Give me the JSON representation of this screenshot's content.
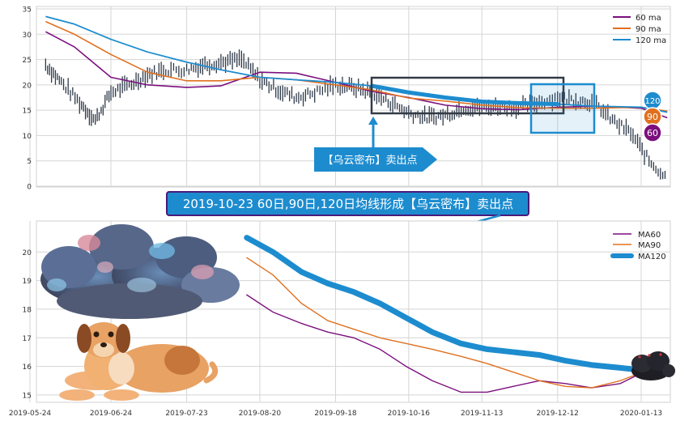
{
  "colors": {
    "ma60": "#7b0f7e",
    "ma90": "#e0701e",
    "ma120": "#1d8ccf",
    "price": "#2f3a4a",
    "grid": "#d5d5d5",
    "callout_fill": "#1d8ccf",
    "banner_fill": "#1d8ccf",
    "banner_border": "#4a1a7a",
    "dark_box": "#333b46"
  },
  "chart_data": [
    {
      "type": "line",
      "panel": "top",
      "x_dates": [
        "2019-05-24",
        "2019-06-24",
        "2019-07-23",
        "2019-08-20",
        "2019-09-18",
        "2019-10-16",
        "2019-11-13",
        "2019-12-12",
        "2020-01-13"
      ],
      "yticks": [
        "0",
        "5",
        "10",
        "15",
        "20",
        "25",
        "30",
        "35"
      ],
      "ylim": [
        0,
        35
      ],
      "grid": true,
      "legend_position": "top-right",
      "series": [
        {
          "name": "60 ma",
          "x": [
            "2019-05-30",
            "2019-06-10",
            "2019-06-24",
            "2019-07-08",
            "2019-07-23",
            "2019-08-05",
            "2019-08-20",
            "2019-09-03",
            "2019-09-18",
            "2019-10-02",
            "2019-10-16",
            "2019-10-30",
            "2019-11-13",
            "2019-11-27",
            "2019-12-12",
            "2019-12-26",
            "2020-01-13",
            "2020-01-23"
          ],
          "values": [
            30.5,
            27.5,
            21.5,
            20.0,
            19.5,
            19.8,
            22.5,
            22.3,
            20.5,
            18.7,
            17.5,
            16.0,
            15.3,
            15.1,
            15.6,
            15.8,
            15.4,
            13.5
          ]
        },
        {
          "name": "90 ma",
          "x": [
            "2019-05-30",
            "2019-06-10",
            "2019-06-24",
            "2019-07-08",
            "2019-07-23",
            "2019-08-05",
            "2019-08-20",
            "2019-09-03",
            "2019-09-18",
            "2019-10-02",
            "2019-10-16",
            "2019-10-30",
            "2019-11-13",
            "2019-11-27",
            "2019-12-12",
            "2019-12-26",
            "2020-01-13",
            "2020-01-23"
          ],
          "values": [
            32.5,
            30.0,
            26.0,
            22.5,
            20.8,
            20.8,
            21.5,
            21.0,
            20.0,
            19.0,
            17.4,
            16.8,
            16.0,
            15.5,
            15.4,
            15.4,
            15.6,
            14.8
          ]
        },
        {
          "name": "120 ma",
          "x": [
            "2019-05-30",
            "2019-06-10",
            "2019-06-24",
            "2019-07-08",
            "2019-07-23",
            "2019-08-05",
            "2019-08-20",
            "2019-09-03",
            "2019-09-18",
            "2019-10-02",
            "2019-10-16",
            "2019-10-30",
            "2019-11-13",
            "2019-11-27",
            "2019-12-12",
            "2019-12-26",
            "2020-01-13",
            "2020-01-23"
          ],
          "values": [
            33.5,
            32.0,
            29.0,
            26.5,
            24.5,
            23.0,
            21.5,
            21.0,
            20.5,
            19.8,
            18.5,
            17.5,
            16.7,
            16.4,
            16.2,
            15.8,
            15.6,
            14.6
          ]
        },
        {
          "name": "price",
          "x": [
            "2019-05-30",
            "2019-06-05",
            "2019-06-12",
            "2019-06-18",
            "2019-06-24",
            "2019-07-01",
            "2019-07-08",
            "2019-07-15",
            "2019-07-23",
            "2019-07-30",
            "2019-08-06",
            "2019-08-13",
            "2019-08-20",
            "2019-08-27",
            "2019-09-03",
            "2019-09-10",
            "2019-09-18",
            "2019-09-25",
            "2019-10-02",
            "2019-10-09",
            "2019-10-16",
            "2019-10-23",
            "2019-10-30",
            "2019-11-06",
            "2019-11-13",
            "2019-11-20",
            "2019-11-27",
            "2019-12-04",
            "2019-12-12",
            "2019-12-19",
            "2019-12-26",
            "2020-01-02",
            "2020-01-09",
            "2020-01-16",
            "2020-01-23"
          ],
          "values": [
            24.0,
            20.5,
            16.5,
            13.0,
            18.5,
            20.0,
            22.0,
            23.0,
            23.0,
            24.0,
            24.5,
            25.0,
            21.0,
            19.0,
            17.5,
            18.5,
            20.0,
            19.5,
            18.5,
            16.5,
            14.5,
            13.5,
            14.0,
            15.5,
            15.5,
            15.8,
            15.5,
            16.5,
            17.5,
            17.0,
            16.5,
            13.0,
            10.5,
            5.0,
            1.5
          ]
        }
      ],
      "annotations": {
        "end_badges": [
          "120",
          "90",
          "60"
        ],
        "callout_text": "【乌云密布】卖出点"
      }
    },
    {
      "type": "line",
      "panel": "bottom",
      "x_dates": [
        "2019-05-24",
        "2019-06-24",
        "2019-07-23",
        "2019-08-20",
        "2019-09-18",
        "2019-10-16",
        "2019-11-13",
        "2019-12-12",
        "2020-01-13"
      ],
      "yticks": [
        "15",
        "16",
        "17",
        "18",
        "19",
        "20"
      ],
      "ylim": [
        14.8,
        20.8
      ],
      "grid": true,
      "legend_position": "top-right",
      "series": [
        {
          "name": "MA60",
          "x": [
            "2019-08-15",
            "2019-08-25",
            "2019-09-05",
            "2019-09-15",
            "2019-09-25",
            "2019-10-05",
            "2019-10-15",
            "2019-10-25",
            "2019-11-05",
            "2019-11-15",
            "2019-11-25",
            "2019-12-05",
            "2019-12-15",
            "2019-12-25",
            "2020-01-05",
            "2020-01-15"
          ],
          "values": [
            18.5,
            17.9,
            17.5,
            17.2,
            17.0,
            16.6,
            16.0,
            15.5,
            15.1,
            15.1,
            15.3,
            15.5,
            15.4,
            15.25,
            15.4,
            15.85
          ]
        },
        {
          "name": "MA90",
          "x": [
            "2019-08-15",
            "2019-08-25",
            "2019-09-05",
            "2019-09-15",
            "2019-09-25",
            "2019-10-05",
            "2019-10-15",
            "2019-10-25",
            "2019-11-05",
            "2019-11-15",
            "2019-11-25",
            "2019-12-05",
            "2019-12-15",
            "2019-12-25",
            "2020-01-05",
            "2020-01-15"
          ],
          "values": [
            19.8,
            19.2,
            18.2,
            17.6,
            17.3,
            17.0,
            16.8,
            16.6,
            16.35,
            16.1,
            15.8,
            15.5,
            15.3,
            15.25,
            15.5,
            15.85
          ]
        },
        {
          "name": "MA120",
          "x": [
            "2019-08-15",
            "2019-08-25",
            "2019-09-05",
            "2019-09-15",
            "2019-09-25",
            "2019-10-05",
            "2019-10-15",
            "2019-10-25",
            "2019-11-05",
            "2019-11-15",
            "2019-11-25",
            "2019-12-05",
            "2019-12-15",
            "2019-12-25",
            "2020-01-05",
            "2020-01-15"
          ],
          "values": [
            20.5,
            20.0,
            19.3,
            18.9,
            18.6,
            18.2,
            17.7,
            17.2,
            16.8,
            16.6,
            16.5,
            16.4,
            16.2,
            16.05,
            15.95,
            15.85
          ]
        }
      ]
    }
  ],
  "legend_top": [
    "60 ma",
    "90 ma",
    "120 ma"
  ],
  "legend_bottom": [
    "MA60",
    "MA90",
    "MA120"
  ],
  "banner_text": "2019-10-23 60日,90日,120日均线形成【乌云密布】卖出点",
  "callout_text": "【乌云密布】卖出点",
  "end_badges": [
    "120",
    "90",
    "60"
  ],
  "decorations": {
    "cloud": "storm-cloud-icon",
    "dog": "dog-icon",
    "small_cloud": "dark-cloud-icon"
  }
}
